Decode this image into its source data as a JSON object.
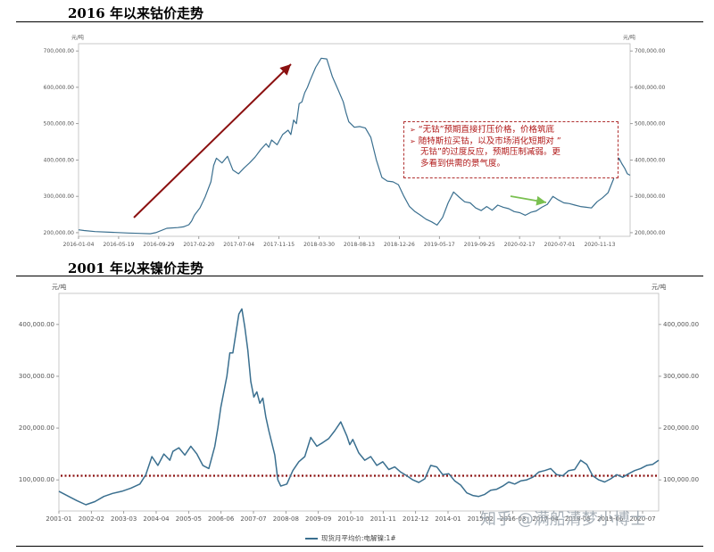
{
  "titles": {
    "cobalt": "2016 年以来钴价走势",
    "nickel": "2001 年以来镍价走势"
  },
  "watermark": "知乎 @满船清梦小博士",
  "colors": {
    "line": "#3a6f8f",
    "arrow": "#8b1010",
    "green_arrow": "#7ac050",
    "dotted": "#8b1010",
    "note_border": "#b03030"
  },
  "annotation": {
    "lines": [
      "“无钴”预期直接打压价格，价格筑底",
      "随特斯拉买钴，以及市场消化短期对 ”",
      "无钴”的过度反应，预期压制减弱。更",
      "多看到供需的景气度。"
    ],
    "bullet_icon": "arrow-bullet-icon"
  },
  "chart_data": [
    {
      "type": "line",
      "unit_left": "元/吨",
      "unit_right": "元/吨",
      "ylim": [
        190000,
        720000
      ],
      "y_ticks": [
        200000,
        300000,
        400000,
        500000,
        600000,
        700000
      ],
      "y_tick_labels": [
        "200,000.00",
        "300,000.00",
        "400,000.00",
        "500,000.00",
        "600,000.00",
        "700,000.00"
      ],
      "x_tick_labels": [
        "2016-01-04",
        "2016-05-19",
        "2016-09-29",
        "2017-02-20",
        "2017-07-04",
        "2017-11-15",
        "2018-03-30",
        "2018-08-13",
        "2018-12-26",
        "2019-05-17",
        "2019-09-25",
        "2020-02-17",
        "2020-07-01",
        "2020-11-13"
      ],
      "series": [
        {
          "x": [
            0,
            0.01,
            0.03,
            0.06,
            0.09,
            0.11,
            0.13,
            0.14,
            0.16,
            0.18,
            0.19,
            0.2,
            0.205,
            0.21,
            0.22,
            0.23,
            0.24,
            0.245,
            0.25,
            0.26,
            0.27,
            0.28,
            0.29,
            0.3,
            0.31,
            0.32,
            0.33,
            0.34,
            0.345,
            0.35,
            0.36,
            0.37,
            0.38,
            0.385,
            0.39,
            0.395,
            0.4,
            0.405,
            0.41,
            0.415,
            0.42,
            0.43,
            0.44,
            0.45,
            0.46,
            0.47,
            0.48,
            0.485,
            0.49,
            0.5,
            0.51,
            0.52,
            0.53,
            0.54,
            0.55,
            0.56,
            0.57,
            0.58,
            0.59,
            0.6,
            0.61,
            0.62,
            0.63,
            0.64,
            0.65,
            0.66,
            0.67,
            0.68,
            0.69,
            0.7,
            0.71,
            0.72,
            0.73,
            0.74,
            0.75,
            0.76,
            0.77,
            0.78,
            0.79,
            0.8,
            0.81,
            0.82,
            0.83,
            0.84,
            0.85,
            0.86,
            0.87,
            0.88,
            0.89,
            0.9,
            0.91,
            0.92,
            0.93,
            0.94,
            0.95,
            0.96,
            0.97,
            0.975,
            0.98,
            0.985,
            0.99,
            0.995,
            1.0
          ],
          "y": [
            208000,
            206000,
            203000,
            201000,
            199000,
            198000,
            197000,
            200000,
            212000,
            214000,
            216000,
            222000,
            232000,
            248000,
            268000,
            300000,
            340000,
            385000,
            405000,
            392000,
            410000,
            372000,
            362000,
            378000,
            392000,
            408000,
            428000,
            445000,
            435000,
            455000,
            442000,
            470000,
            482000,
            470000,
            510000,
            500000,
            555000,
            560000,
            585000,
            600000,
            620000,
            655000,
            680000,
            678000,
            630000,
            595000,
            560000,
            530000,
            505000,
            490000,
            492000,
            488000,
            462000,
            400000,
            352000,
            342000,
            340000,
            332000,
            300000,
            272000,
            258000,
            248000,
            237000,
            230000,
            221000,
            242000,
            282000,
            312000,
            298000,
            285000,
            282000,
            268000,
            261000,
            272000,
            262000,
            276000,
            270000,
            266000,
            258000,
            255000,
            248000,
            256000,
            260000,
            270000,
            278000,
            300000,
            290000,
            282000,
            280000,
            276000,
            272000,
            270000,
            268000,
            285000,
            296000,
            310000,
            348000,
            380000,
            405000,
            390000,
            378000,
            362000,
            358000
          ]
        }
      ]
    },
    {
      "type": "line",
      "unit_left": "元/吨",
      "unit_right": "元/吨",
      "ylim": [
        40000,
        460000
      ],
      "y_ticks": [
        100000,
        200000,
        300000,
        400000
      ],
      "y_tick_labels": [
        "100,000.00",
        "200,000.00",
        "300,000.00",
        "400,000.00"
      ],
      "x_tick_labels": [
        "2001-01",
        "2002-02",
        "2003-03",
        "2004-04",
        "2005-05",
        "2006-06",
        "2007-07",
        "2008-08",
        "2009-09",
        "2010-10",
        "2011-11",
        "2012-12",
        "2014-01",
        "2015-02",
        "2016-03",
        "2017-04",
        "2018-05",
        "2019-06",
        "2020-07"
      ],
      "reference_line": 108000,
      "series": [
        {
          "name": "现货月平均价:电解镍:1#",
          "x": [
            0,
            0.01,
            0.02,
            0.03,
            0.045,
            0.06,
            0.075,
            0.09,
            0.105,
            0.12,
            0.135,
            0.145,
            0.155,
            0.165,
            0.175,
            0.185,
            0.19,
            0.2,
            0.21,
            0.22,
            0.23,
            0.24,
            0.25,
            0.26,
            0.265,
            0.27,
            0.28,
            0.285,
            0.29,
            0.3,
            0.305,
            0.31,
            0.315,
            0.32,
            0.325,
            0.33,
            0.335,
            0.34,
            0.345,
            0.35,
            0.36,
            0.365,
            0.37,
            0.38,
            0.39,
            0.4,
            0.41,
            0.42,
            0.43,
            0.44,
            0.45,
            0.46,
            0.47,
            0.48,
            0.485,
            0.49,
            0.5,
            0.51,
            0.52,
            0.53,
            0.54,
            0.55,
            0.56,
            0.57,
            0.58,
            0.59,
            0.6,
            0.61,
            0.62,
            0.63,
            0.64,
            0.65,
            0.66,
            0.67,
            0.68,
            0.69,
            0.7,
            0.71,
            0.72,
            0.73,
            0.74,
            0.75,
            0.76,
            0.77,
            0.78,
            0.79,
            0.8,
            0.81,
            0.82,
            0.83,
            0.84,
            0.85,
            0.86,
            0.87,
            0.88,
            0.89,
            0.9,
            0.91,
            0.92,
            0.93,
            0.94,
            0.95,
            0.96,
            0.97,
            0.98,
            0.99,
            1.0
          ],
          "y": [
            78000,
            72000,
            66000,
            60000,
            52000,
            58000,
            68000,
            74000,
            78000,
            84000,
            92000,
            110000,
            145000,
            128000,
            150000,
            138000,
            155000,
            162000,
            148000,
            165000,
            150000,
            128000,
            122000,
            165000,
            200000,
            240000,
            300000,
            345000,
            345000,
            420000,
            430000,
            395000,
            350000,
            290000,
            260000,
            270000,
            248000,
            258000,
            222000,
            195000,
            148000,
            100000,
            88000,
            92000,
            118000,
            135000,
            145000,
            182000,
            165000,
            172000,
            180000,
            195000,
            212000,
            185000,
            168000,
            178000,
            152000,
            138000,
            145000,
            128000,
            135000,
            120000,
            125000,
            115000,
            108000,
            100000,
            95000,
            102000,
            128000,
            125000,
            110000,
            112000,
            98000,
            90000,
            75000,
            70000,
            68000,
            72000,
            80000,
            82000,
            88000,
            96000,
            92000,
            98000,
            100000,
            105000,
            115000,
            118000,
            122000,
            110000,
            108000,
            118000,
            120000,
            138000,
            130000,
            108000,
            100000,
            96000,
            102000,
            110000,
            105000,
            112000,
            118000,
            122000,
            128000,
            130000,
            138000
          ]
        }
      ]
    }
  ]
}
